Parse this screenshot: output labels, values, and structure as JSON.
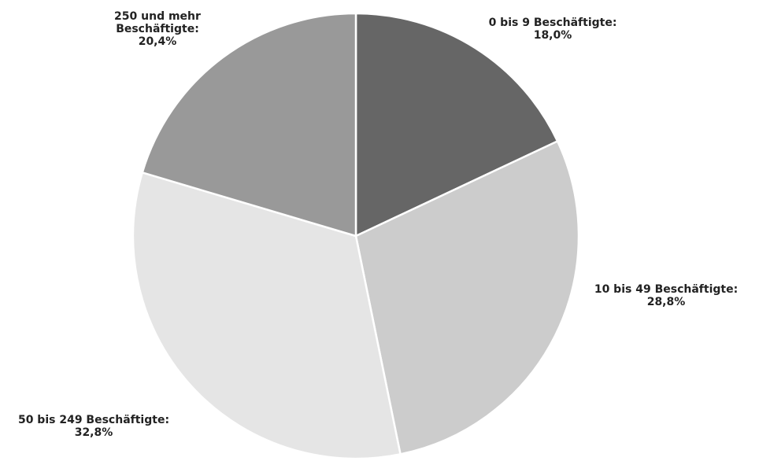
{
  "chart_data": {
    "type": "pie",
    "start_angle_deg": 0,
    "direction": "clockwise",
    "slices": [
      {
        "label_lines": [
          "0 bis 9 Beschäftigte:",
          "18,0%"
        ],
        "value": 18.0,
        "color": "#666666"
      },
      {
        "label_lines": [
          "10 bis 49 Beschäftigte:",
          "28,8%"
        ],
        "value": 28.8,
        "color": "#cccccc"
      },
      {
        "label_lines": [
          "50 bis 249 Beschäftigte:",
          "32,8%"
        ],
        "value": 32.8,
        "color": "#e5e5e5"
      },
      {
        "label_lines": [
          "250 und mehr",
          "Beschäftigte:",
          "20,4%"
        ],
        "value": 20.4,
        "color": "#999999"
      }
    ]
  }
}
